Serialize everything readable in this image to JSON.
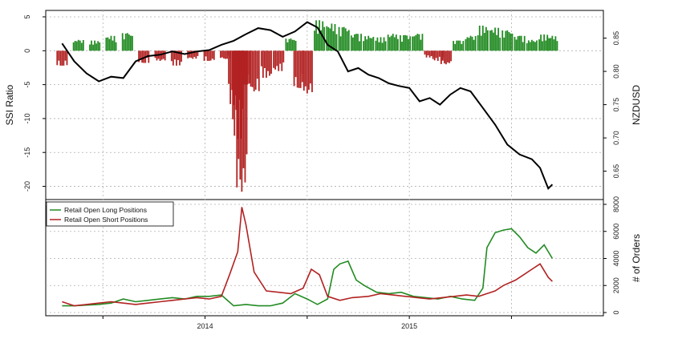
{
  "chart_data": [
    {
      "type": "bar",
      "panel": "top",
      "ylabel": "SSI Ratio",
      "ylabel_right": "NZDUSD",
      "ylim": [
        -21,
        5
      ],
      "y_ticks": [
        5,
        0,
        -5,
        -10,
        -15,
        -20
      ],
      "y_ticks_right": [
        0.85,
        0.8,
        0.75,
        0.7,
        0.65
      ],
      "ylim_right": [
        0.617,
        0.882
      ],
      "x_ticks": [
        "2014",
        "2015"
      ],
      "grid": true,
      "colors": {
        "positive": "#228B22",
        "negative": "#B22222",
        "price": "#000000"
      },
      "series": [
        {
          "role": "ssi_ratio_bars",
          "x": [
            2013.3,
            2013.38,
            2013.46,
            2013.54,
            2013.62,
            2013.7,
            2013.78,
            2013.86,
            2013.94,
            2014.02,
            2014.1,
            2014.14,
            2014.16,
            2014.18,
            2014.2,
            2014.24,
            2014.3,
            2014.36,
            2014.42,
            2014.46,
            2014.5,
            2014.56,
            2014.62,
            2014.68,
            2014.74,
            2014.8,
            2014.86,
            2014.92,
            2014.98,
            2015.04,
            2015.1,
            2015.14,
            2015.18,
            2015.24,
            2015.3,
            2015.36,
            2015.42,
            2015.48,
            2015.54,
            2015.6,
            2015.66,
            2015.7
          ],
          "values": [
            -2.2,
            1.6,
            1.5,
            2.2,
            2.6,
            -1.8,
            -1.5,
            -2.2,
            -1.2,
            -1.5,
            -1.2,
            -8,
            -13,
            -20.8,
            -5,
            -6,
            -4,
            -3,
            1.8,
            -5.5,
            -6.3,
            4.5,
            4,
            3.5,
            2.5,
            2.2,
            2,
            2.5,
            2.3,
            2.5,
            -1,
            -1.5,
            -2,
            1.5,
            2.2,
            3.7,
            3.4,
            3,
            2.2,
            1.6,
            2.4,
            2.2
          ]
        },
        {
          "role": "price_line",
          "x": [
            2013.3,
            2013.36,
            2013.42,
            2013.48,
            2013.54,
            2013.6,
            2013.66,
            2013.72,
            2013.78,
            2013.84,
            2013.9,
            2013.96,
            2014.02,
            2014.08,
            2014.14,
            2014.2,
            2014.26,
            2014.32,
            2014.38,
            2014.44,
            2014.5,
            2014.55,
            2014.6,
            2014.65,
            2014.7,
            2014.75,
            2014.8,
            2014.85,
            2014.9,
            2014.95,
            2015.0,
            2015.05,
            2015.1,
            2015.15,
            2015.2,
            2015.25,
            2015.3,
            2015.36,
            2015.42,
            2015.48,
            2015.54,
            2015.6,
            2015.64,
            2015.68,
            2015.7
          ],
          "values": [
            0.842,
            0.815,
            0.797,
            0.785,
            0.792,
            0.79,
            0.815,
            0.823,
            0.825,
            0.83,
            0.826,
            0.83,
            0.832,
            0.84,
            0.846,
            0.856,
            0.865,
            0.862,
            0.852,
            0.86,
            0.874,
            0.866,
            0.84,
            0.83,
            0.8,
            0.805,
            0.795,
            0.79,
            0.782,
            0.778,
            0.775,
            0.755,
            0.76,
            0.75,
            0.765,
            0.775,
            0.77,
            0.745,
            0.72,
            0.69,
            0.675,
            0.668,
            0.655,
            0.624,
            0.63
          ]
        }
      ]
    },
    {
      "type": "line",
      "panel": "bottom",
      "ylabel": "# of Orders",
      "ylim": [
        0,
        8000
      ],
      "y_ticks": [
        0,
        2000,
        4000,
        6000,
        8000
      ],
      "x_ticks": [
        "2014",
        "2015"
      ],
      "grid": true,
      "legend_position": "top-left",
      "series": [
        {
          "name": "Retail Open Long Positions",
          "color": "#228B22",
          "x": [
            2013.3,
            2013.36,
            2013.42,
            2013.48,
            2013.54,
            2013.6,
            2013.66,
            2013.72,
            2013.78,
            2013.84,
            2013.9,
            2013.96,
            2014.02,
            2014.08,
            2014.14,
            2014.2,
            2014.26,
            2014.32,
            2014.38,
            2014.44,
            2014.5,
            2014.55,
            2014.6,
            2014.63,
            2014.66,
            2014.7,
            2014.74,
            2014.78,
            2014.84,
            2014.9,
            2014.96,
            2015.02,
            2015.08,
            2015.14,
            2015.2,
            2015.26,
            2015.32,
            2015.36,
            2015.38,
            2015.42,
            2015.46,
            2015.5,
            2015.54,
            2015.58,
            2015.62,
            2015.66,
            2015.7
          ],
          "values": [
            500,
            500,
            550,
            600,
            700,
            1000,
            800,
            900,
            1000,
            1100,
            1000,
            1200,
            1200,
            1300,
            500,
            600,
            500,
            500,
            700,
            1400,
            1000,
            600,
            1000,
            3200,
            3600,
            3800,
            2400,
            2000,
            1500,
            1400,
            1500,
            1200,
            1100,
            1000,
            1200,
            1000,
            900,
            1800,
            4800,
            5900,
            6100,
            6200,
            5600,
            4800,
            4400,
            5000,
            4000
          ]
        },
        {
          "name": "Retail Open Short Positions",
          "color": "#B22222",
          "x": [
            2013.3,
            2013.36,
            2013.42,
            2013.48,
            2013.54,
            2013.6,
            2013.66,
            2013.72,
            2013.78,
            2013.84,
            2013.9,
            2013.96,
            2014.02,
            2014.08,
            2014.12,
            2014.16,
            2014.18,
            2014.2,
            2014.24,
            2014.3,
            2014.36,
            2014.42,
            2014.48,
            2014.52,
            2014.56,
            2014.6,
            2014.66,
            2014.72,
            2014.8,
            2014.86,
            2014.92,
            2014.98,
            2015.04,
            2015.1,
            2015.16,
            2015.22,
            2015.28,
            2015.34,
            2015.38,
            2015.42,
            2015.46,
            2015.52,
            2015.56,
            2015.6,
            2015.64,
            2015.68,
            2015.7
          ],
          "values": [
            800,
            500,
            600,
            700,
            800,
            700,
            600,
            700,
            800,
            900,
            1000,
            1100,
            1000,
            1200,
            2800,
            4500,
            7800,
            6500,
            3000,
            1600,
            1500,
            1400,
            1800,
            3200,
            2800,
            1200,
            900,
            1100,
            1200,
            1400,
            1300,
            1200,
            1100,
            1000,
            1100,
            1200,
            1300,
            1200,
            1400,
            1600,
            2000,
            2400,
            2800,
            3200,
            3600,
            2600,
            2300
          ]
        }
      ]
    }
  ]
}
